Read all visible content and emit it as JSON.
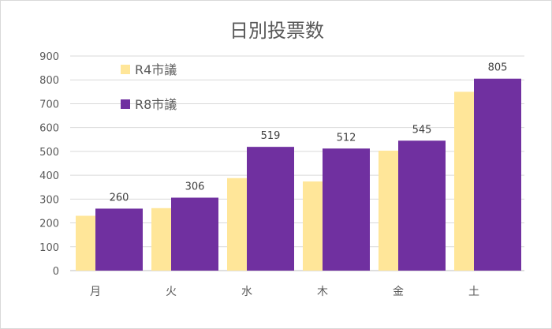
{
  "chart_data": {
    "type": "bar",
    "title": "日別投票数",
    "categories": [
      "月",
      "火",
      "水",
      "木",
      "金",
      "土"
    ],
    "series": [
      {
        "name": "R4市議",
        "values": [
          230,
          262,
          388,
          374,
          503,
          750
        ],
        "color": "#FFE699",
        "labels": [
          "",
          "",
          "",
          "",
          "",
          ""
        ]
      },
      {
        "name": "R8市議",
        "values": [
          260,
          306,
          519,
          512,
          545,
          805
        ],
        "color": "#7030A0",
        "labels": [
          "260",
          "306",
          "519",
          "512",
          "545",
          "805"
        ]
      }
    ],
    "ylim": [
      0,
      900
    ],
    "yticks": [
      "0",
      "100",
      "200",
      "300",
      "400",
      "500",
      "600",
      "700",
      "800",
      "900"
    ],
    "grid": true,
    "legend": "top-left"
  }
}
